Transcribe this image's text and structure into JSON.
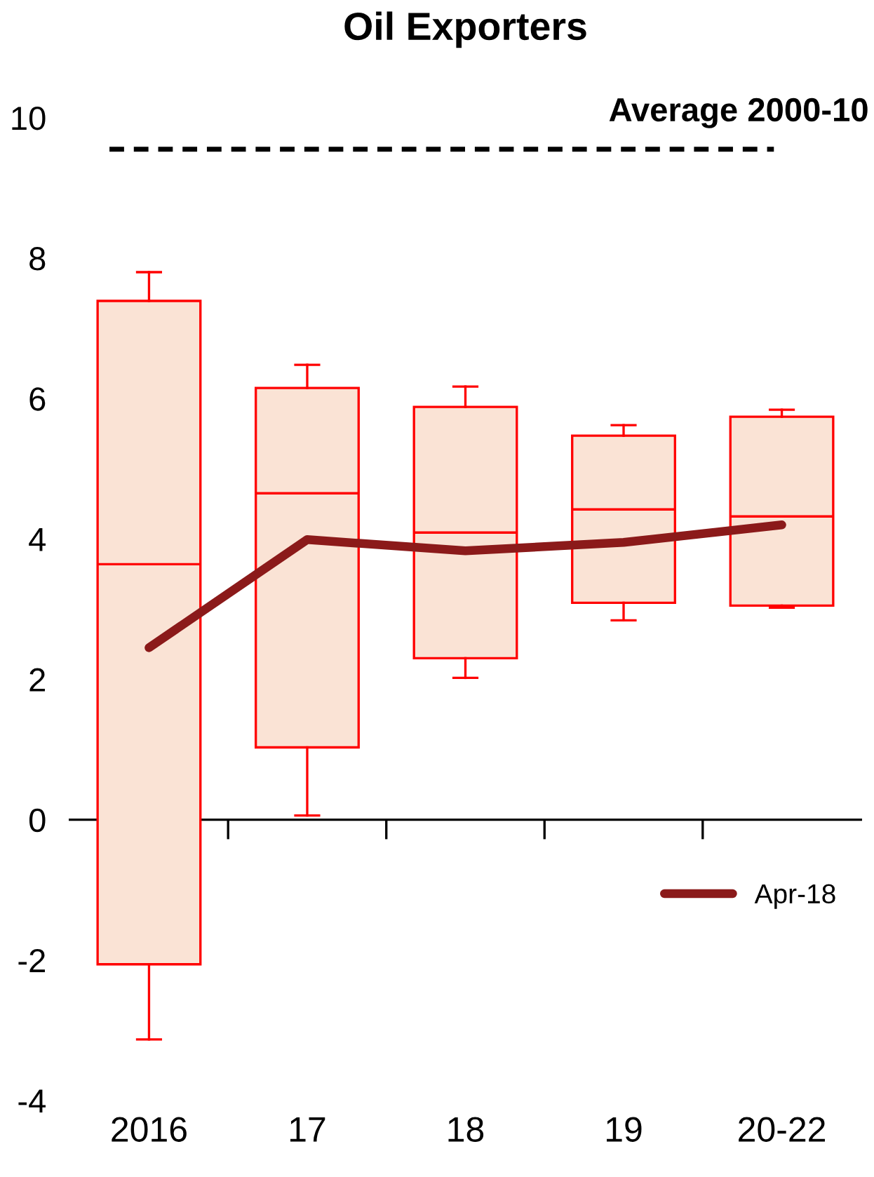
{
  "chart_data": {
    "type": "box",
    "title": "Oil Exporters",
    "categories": [
      "2016",
      "17",
      "18",
      "19",
      "20-22"
    ],
    "boxes": [
      {
        "low": -3.13,
        "q1": -2.06,
        "median": 3.64,
        "q3": 7.39,
        "high": 7.8
      },
      {
        "low": 0.06,
        "q1": 1.03,
        "median": 4.65,
        "q3": 6.15,
        "high": 6.48
      },
      {
        "low": 2.02,
        "q1": 2.3,
        "median": 4.09,
        "q3": 5.88,
        "high": 6.17
      },
      {
        "low": 2.84,
        "q1": 3.09,
        "median": 4.42,
        "q3": 5.47,
        "high": 5.62
      },
      {
        "low": 3.02,
        "q1": 3.05,
        "median": 4.32,
        "q3": 5.74,
        "high": 5.84
      }
    ],
    "color": "#fae3d5",
    "series": [
      {
        "type": "line",
        "name": "Apr-18",
        "color": "#8b1a1a",
        "values": [
          2.45,
          3.99,
          3.83,
          3.95,
          4.2
        ]
      }
    ],
    "ref_lines": [
      {
        "axis": "y",
        "value": 9.55,
        "label": "Average 2000-10",
        "color": "#000000",
        "line_style": "dashed"
      }
    ],
    "ylim": [
      -4,
      10
    ],
    "yticks": [
      -4,
      -2,
      0,
      2,
      4,
      6,
      8,
      10
    ],
    "legend": "bottom right"
  }
}
